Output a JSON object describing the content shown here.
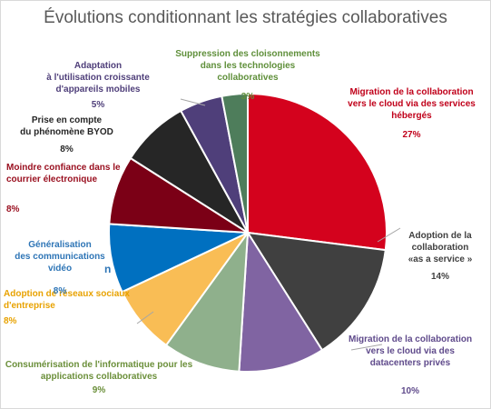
{
  "chart_data": {
    "type": "pie",
    "title": "Évolutions conditionnant les stratégies collaboratives",
    "slices": [
      {
        "label_lines": [
          "Migration de la collaboration",
          "vers le cloud via des services",
          "hébergés"
        ],
        "value": 27,
        "value_label": "27%",
        "color": "#d4021d",
        "label_color": "#c0001a"
      },
      {
        "label_lines": [
          "Adoption de la",
          "collaboration",
          "«as a service »"
        ],
        "value": 14,
        "value_label": "14%",
        "color": "#404040",
        "label_color": "#404040"
      },
      {
        "label_lines": [
          "Migration de la collaboration",
          "vers le cloud via des",
          "datacenters privés"
        ],
        "value": 10,
        "value_label": "10%",
        "color": "#8064a2",
        "label_color": "#5f4a8b"
      },
      {
        "label_lines": [
          "Consumérisation de l'informatique pour les",
          "applications collaboratives"
        ],
        "value": 9,
        "value_label": "9%",
        "color": "#8fb08c",
        "label_color": "#6b8f3a"
      },
      {
        "label_lines": [
          "Adoption de réseaux sociaux",
          "d'entreprise"
        ],
        "value": 8,
        "value_label": "8%",
        "color": "#f9bd55",
        "label_color": "#e8a200"
      },
      {
        "label_lines": [
          "Généralisation",
          "des communications",
          "vidéo"
        ],
        "value": 8,
        "value_label": "8%",
        "color": "#0070c0",
        "label_color": "#2e75b6"
      },
      {
        "label_lines": [
          "Moindre confiance dans le",
          "courrier électronique"
        ],
        "value": 8,
        "value_label": "8%",
        "color": "#7b0016",
        "label_color": "#9a1020"
      },
      {
        "label_lines": [
          "Prise en compte",
          "du phénomène BYOD"
        ],
        "value": 8,
        "value_label": "8%",
        "color": "#262626",
        "label_color": "#262626"
      },
      {
        "label_lines": [
          "Adaptation",
          "à l'utilisation croissante",
          "d'appareils mobiles"
        ],
        "value": 5,
        "value_label": "5%",
        "color": "#4f3f7a",
        "label_color": "#4f3f7a"
      },
      {
        "label_lines": [
          "Suppression des cloisonnements",
          "dans les technologies collaboratives"
        ],
        "value": 3,
        "value_label": "3%",
        "color": "#4e7d5b",
        "label_color": "#5f8f3a"
      }
    ],
    "stray_mark": "n"
  }
}
